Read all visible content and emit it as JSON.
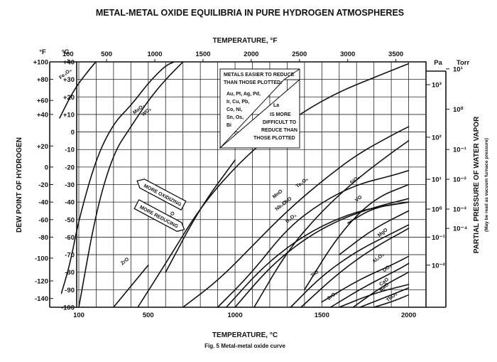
{
  "title": "METAL-METAL OXIDE EQUILIBRIA IN PURE HYDROGEN ATMOSPHERES",
  "caption": "Fig. 5 Metal-metal oxide curve",
  "colors": {
    "ink": "#111111",
    "grid": "#222222",
    "background": "#ffffff"
  },
  "chart_data": {
    "type": "line",
    "grid": true,
    "x_bottom": {
      "label": "TEMPERATURE, °C",
      "range": [
        0,
        2000
      ],
      "ticks": [
        {
          "v": 100,
          "t": "100"
        },
        {
          "v": 500,
          "t": "500"
        },
        {
          "v": 1000,
          "t": "1000"
        },
        {
          "v": 1500,
          "t": "1500"
        },
        {
          "v": 2000,
          "t": "2000"
        }
      ]
    },
    "x_top": {
      "label": "TEMPERATURE, °F",
      "ticks": [
        {
          "v": 100,
          "t": "100"
        },
        {
          "v": 500,
          "t": "500"
        },
        {
          "v": 1000,
          "t": "1000"
        },
        {
          "v": 1500,
          "t": "1500"
        },
        {
          "v": 2000,
          "t": "2000"
        },
        {
          "v": 2500,
          "t": "2500"
        },
        {
          "v": 3000,
          "t": "3000"
        },
        {
          "v": 3500,
          "t": "3500"
        }
      ]
    },
    "y_left_f": {
      "unit": "°F",
      "ticks": [
        {
          "v": 40,
          "t": "+100"
        },
        {
          "v": 30,
          "t": "+80"
        },
        {
          "v": 18,
          "t": "+60"
        },
        {
          "v": 10,
          "t": "+40"
        },
        {
          "v": -8,
          "t": "+20"
        },
        {
          "v": -20,
          "t": "0"
        },
        {
          "v": -30,
          "t": "-20"
        },
        {
          "v": -40,
          "t": "-40"
        },
        {
          "v": -50,
          "t": "-60"
        },
        {
          "v": -60,
          "t": "-80"
        },
        {
          "v": -72,
          "t": "-100"
        },
        {
          "v": -85,
          "t": "-120"
        },
        {
          "v": -95,
          "t": "-140"
        }
      ]
    },
    "y_left_c": {
      "label": "DEW POINT OF HYDROGEN",
      "unit": "°C",
      "ticks": [
        {
          "v": 40,
          "t": "+40"
        },
        {
          "v": 30,
          "t": "+30"
        },
        {
          "v": 20,
          "t": "+20"
        },
        {
          "v": 10,
          "t": "+10"
        },
        {
          "v": 0,
          "t": "0"
        },
        {
          "v": -10,
          "t": "-10"
        },
        {
          "v": -20,
          "t": "-20"
        },
        {
          "v": -30,
          "t": "-30"
        },
        {
          "v": -40,
          "t": "-40"
        },
        {
          "v": -50,
          "t": "-50"
        },
        {
          "v": -60,
          "t": "-60"
        },
        {
          "v": -70,
          "t": "-70"
        },
        {
          "v": -80,
          "t": "-80"
        },
        {
          "v": -90,
          "t": "-90"
        },
        {
          "v": -100,
          "t": "-100"
        }
      ],
      "range": [
        -100,
        40
      ]
    },
    "y_right_pa": {
      "unit": "Pa",
      "ticks": [
        {
          "v": 27,
          "t": "10³"
        },
        {
          "v": -3,
          "t": "10²"
        },
        {
          "v": -27,
          "t": "10¹"
        },
        {
          "v": -44,
          "t": "10⁰"
        },
        {
          "v": -60,
          "t": "10⁻¹"
        },
        {
          "v": -76,
          "t": "10⁻²"
        }
      ]
    },
    "y_right_torr": {
      "unit": "Torr",
      "label": "PARTIAL PRESSURE OF WATER VAPOR",
      "note": "(May be read as vacuum furnace pressure)",
      "ticks": [
        {
          "v": 36,
          "t": "10¹"
        },
        {
          "v": 13,
          "t": "10⁰"
        },
        {
          "v": -10,
          "t": "10⁻¹"
        },
        {
          "v": -27,
          "t": "10⁻²"
        },
        {
          "v": -44,
          "t": "10⁻³"
        },
        {
          "v": -55,
          "t": "10⁻⁴"
        }
      ]
    },
    "series": [
      {
        "name": "Fe₃O₄",
        "label_at": [
          -5,
          30
        ],
        "points": [
          [
            -10,
            8
          ],
          [
            50,
            20
          ],
          [
            100,
            28
          ],
          [
            180,
            38
          ],
          [
            200,
            40
          ]
        ]
      },
      {
        "name": "MoO₂",
        "label_at": [
          420,
          10
        ],
        "points": [
          [
            0,
            -92
          ],
          [
            50,
            -75
          ],
          [
            100,
            -50
          ],
          [
            200,
            -15
          ],
          [
            300,
            5
          ],
          [
            400,
            15
          ],
          [
            500,
            28
          ],
          [
            600,
            38
          ],
          [
            650,
            40
          ]
        ]
      },
      {
        "name": "WO₂",
        "label_at": [
          470,
          9
        ],
        "points": [
          [
            100,
            -100
          ],
          [
            200,
            -45
          ],
          [
            300,
            -12
          ],
          [
            400,
            3
          ],
          [
            500,
            18
          ],
          [
            600,
            30
          ],
          [
            700,
            40
          ]
        ]
      },
      {
        "name": "Cr₂O₃",
        "label_at": [
          1070,
          -7
        ],
        "points": [
          [
            440,
            -100
          ],
          [
            600,
            -75
          ],
          [
            800,
            -43
          ],
          [
            1000,
            -20
          ],
          [
            1200,
            -2
          ],
          [
            1400,
            12
          ],
          [
            1600,
            23
          ],
          [
            1800,
            31
          ],
          [
            2000,
            39
          ]
        ]
      },
      {
        "name": "Ta₂O₅",
        "label_at": [
          1360,
          -32
        ],
        "points": [
          [
            1110,
            -100
          ],
          [
            1300,
            -68
          ],
          [
            1500,
            -45
          ],
          [
            1700,
            -27
          ],
          [
            1900,
            -12
          ],
          [
            2000,
            -5
          ]
        ]
      },
      {
        "name": "Nb₂O",
        "label_at": [
          1240,
          -45
        ],
        "points": [
          [
            900,
            -100
          ],
          [
            1100,
            -80
          ],
          [
            1300,
            -55
          ],
          [
            1500,
            -40
          ],
          [
            1700,
            -30
          ],
          [
            1900,
            -25
          ],
          [
            2000,
            -22
          ]
        ]
      },
      {
        "name": "SiO₂",
        "label_at": [
          1670,
          -30
        ],
        "points": [
          [
            1400,
            -90
          ],
          [
            1600,
            -58
          ],
          [
            1800,
            -38
          ],
          [
            2000,
            -30
          ]
        ]
      },
      {
        "name": "VO",
        "label_at": [
          1700,
          -40
        ],
        "points": [
          [
            1650,
            -52
          ],
          [
            1800,
            -43
          ],
          [
            2000,
            -40
          ]
        ]
      },
      {
        "name": "MnO",
        "label_at": [
          1225,
          -38
        ],
        "points": [
          [
            700,
            -100
          ],
          [
            900,
            -85
          ],
          [
            1100,
            -65
          ],
          [
            1300,
            -45
          ],
          [
            1500,
            -28
          ],
          [
            1700,
            -13
          ],
          [
            1900,
            -2
          ],
          [
            2000,
            3
          ]
        ]
      },
      {
        "name": "CbO",
        "label_at": [
          1280,
          -42
        ],
        "points": [
          [
            950,
            -100
          ],
          [
            1150,
            -78
          ],
          [
            1350,
            -62
          ],
          [
            1550,
            -51
          ],
          [
            1750,
            -44
          ],
          [
            2000,
            -40
          ]
        ]
      },
      {
        "name": "B₂O₃",
        "label_at": [
          1300,
          -52
        ],
        "points": [
          [
            1000,
            -100
          ],
          [
            1200,
            -77
          ],
          [
            1400,
            -61
          ],
          [
            1600,
            -50
          ],
          [
            1800,
            -43
          ],
          [
            2000,
            -38
          ]
        ]
      },
      {
        "name": "N₂O",
        "label_at": [
          610,
          -50
        ],
        "points": [
          [
            600,
            -80
          ],
          [
            800,
            -43
          ],
          [
            1000,
            -16
          ]
        ]
      },
      {
        "name": "ZrO",
        "label_at": [
          350,
          -76
        ],
        "points": [
          [
            300,
            -100
          ],
          [
            400,
            -88
          ],
          [
            500,
            -76
          ]
        ]
      },
      {
        "name": "TiO",
        "label_at": [
          1445,
          -83
        ],
        "points": [
          [
            1320,
            -100
          ],
          [
            1500,
            -82
          ],
          [
            1700,
            -68
          ],
          [
            1900,
            -58
          ],
          [
            2000,
            -53
          ]
        ]
      },
      {
        "name": "MgO",
        "label_at": [
          1830,
          -60
        ],
        "points": [
          [
            1380,
            -100
          ],
          [
            1600,
            -80
          ],
          [
            1800,
            -66
          ],
          [
            2000,
            -55
          ]
        ]
      },
      {
        "name": "Al₂O₃",
        "label_at": [
          1800,
          -75
        ],
        "points": [
          [
            1500,
            -97
          ],
          [
            1700,
            -85
          ],
          [
            1900,
            -76
          ],
          [
            2000,
            -71
          ]
        ]
      },
      {
        "name": "BaO",
        "label_at": [
          1840,
          -91
        ],
        "points": [
          [
            1600,
            -100
          ],
          [
            1800,
            -92
          ],
          [
            2000,
            -87
          ]
        ]
      },
      {
        "name": "ZrO₂",
        "label_at": [
          1540,
          -96
        ],
        "points": [
          [
            1550,
            -100
          ],
          [
            1750,
            -88
          ],
          [
            1950,
            -78
          ],
          [
            2000,
            -75
          ]
        ]
      },
      {
        "name": "UO₂",
        "label_at": [
          1860,
          -80
        ],
        "points": [
          [
            1680,
            -100
          ],
          [
            1850,
            -88
          ],
          [
            2000,
            -80
          ]
        ]
      },
      {
        "name": "CaO",
        "label_at": [
          1840,
          -88
        ],
        "points": [
          [
            1720,
            -100
          ],
          [
            1900,
            -93
          ],
          [
            2000,
            -89
          ]
        ]
      },
      {
        "name": "ThO₂",
        "label_at": [
          1880,
          -97
        ],
        "points": [
          [
            1800,
            -100
          ],
          [
            1900,
            -97
          ],
          [
            2000,
            -93
          ]
        ]
      },
      {
        "name": "",
        "label_at": null,
        "points": [
          [
            1600,
            -70
          ],
          [
            1800,
            -55
          ],
          [
            2000,
            -45
          ]
        ]
      }
    ],
    "annotations": {
      "easier_box": {
        "lines": [
          "METALS EASIER TO REDUCE",
          "THAN THOSE PLOTTED:"
        ],
        "metals": [
          "Au, Pt, Ag, Pd,",
          "Ir, Cu, Pb,",
          "Co, Ni,",
          "Sn, Os,",
          "Bi"
        ]
      },
      "harder_box": {
        "head": "La",
        "lines": [
          "IS MORE",
          "DIFFICULT TO",
          "REDUCE THAN",
          "THOSE PLOTTED"
        ]
      },
      "more_oxidizing": "MORE OXIDIZING",
      "more_reducing": "MORE REDUCING"
    }
  }
}
